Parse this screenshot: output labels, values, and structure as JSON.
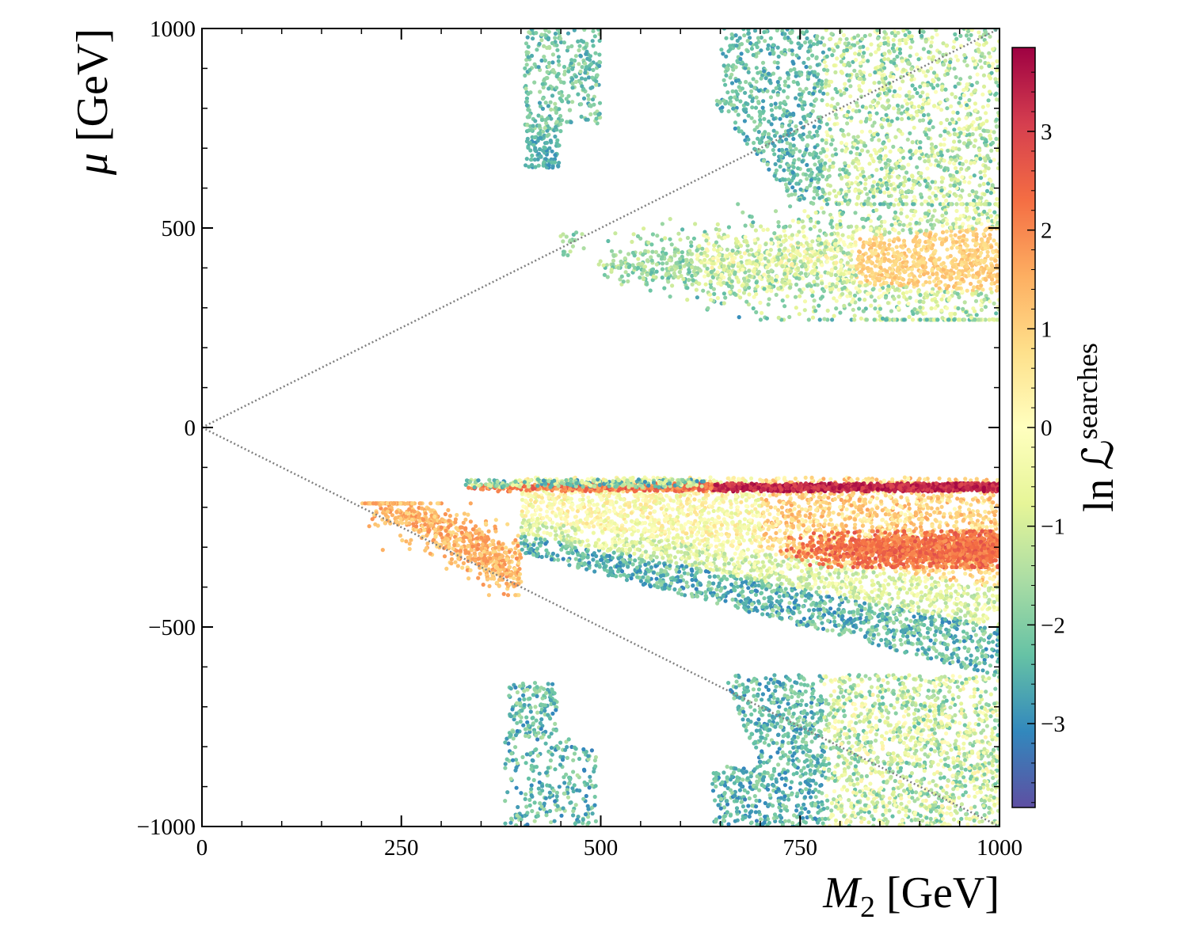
{
  "chart_data": {
    "type": "scatter",
    "title": "",
    "xlabel": "M₂ [GeV]",
    "ylabel": "μ [GeV]",
    "xlim": [
      0,
      1000
    ],
    "ylim": [
      -1000,
      1000
    ],
    "x_ticks": [
      0,
      250,
      500,
      750,
      1000
    ],
    "x_tick_labels": [
      "0",
      "250",
      "500",
      "750",
      "1000"
    ],
    "y_ticks": [
      -1000,
      -500,
      0,
      500,
      1000
    ],
    "y_tick_labels": [
      "−1000",
      "−500",
      "0",
      "500",
      "1000"
    ],
    "grid": false,
    "reference_lines": [
      {
        "style": "dotted",
        "color": "#808080",
        "from": [
          0,
          0
        ],
        "to": [
          1000,
          1000
        ]
      },
      {
        "style": "dotted",
        "color": "#808080",
        "from": [
          0,
          0
        ],
        "to": [
          1000,
          -1000
        ]
      }
    ],
    "colorbar": {
      "label": "ln ℒ^searches",
      "label_main": "ln ℒ",
      "label_sup": "searches",
      "range": [
        -3.85,
        3.85
      ],
      "ticks": [
        -3,
        -2,
        -1,
        0,
        1,
        2,
        3
      ],
      "tick_labels": [
        "−3",
        "−2",
        "−1",
        "0",
        "1",
        "2",
        "3"
      ],
      "colormap": "Spectral_r",
      "colors": [
        "#5e4fa2",
        "#3288bd",
        "#66c2a5",
        "#abdda4",
        "#e6f598",
        "#ffffbf",
        "#fee08b",
        "#fdae61",
        "#f46d43",
        "#d53e4f",
        "#9e0142"
      ]
    },
    "regions": [
      {
        "name": "positive-mu-island",
        "x_range": [
          400,
          500
        ],
        "y_range": [
          650,
          1000
        ],
        "ln_L": [
          -3.2,
          -1.5
        ]
      },
      {
        "name": "positive-mu-small-island",
        "x_range": [
          440,
          480
        ],
        "y_range": [
          430,
          490
        ],
        "ln_L": [
          -2.5,
          -1
        ]
      },
      {
        "name": "positive-mu-upper-wedge",
        "x_range": [
          640,
          1000
        ],
        "y_range": [
          560,
          1000
        ],
        "ln_L": [
          -3,
          0
        ]
      },
      {
        "name": "positive-mu-lower-band",
        "x_range": [
          490,
          1000
        ],
        "y_range": [
          270,
          560
        ],
        "ln_L": [
          -3,
          1.3
        ]
      },
      {
        "name": "negative-mu-thin-strip",
        "x_range": [
          330,
          1000
        ],
        "y_range": [
          -160,
          -140
        ],
        "ln_L": [
          1.5,
          3.8
        ]
      },
      {
        "name": "negative-mu-main-band",
        "x_range": [
          200,
          1000
        ],
        "y_range": [
          -620,
          -120
        ],
        "ln_L": [
          -3.5,
          2.8
        ]
      },
      {
        "name": "negative-mu-orange-core",
        "x_range": [
          720,
          1000
        ],
        "y_range": [
          -350,
          -260
        ],
        "ln_L": [
          1.8,
          2.8
        ]
      },
      {
        "name": "negative-mu-lower-region",
        "x_range": [
          640,
          1000
        ],
        "y_range": [
          -1000,
          -620
        ],
        "ln_L": [
          -3.2,
          0.5
        ]
      },
      {
        "name": "negative-mu-island",
        "x_range": [
          380,
          500
        ],
        "y_range": [
          -1000,
          -640
        ],
        "ln_L": [
          -3.2,
          -1.5
        ]
      }
    ]
  }
}
